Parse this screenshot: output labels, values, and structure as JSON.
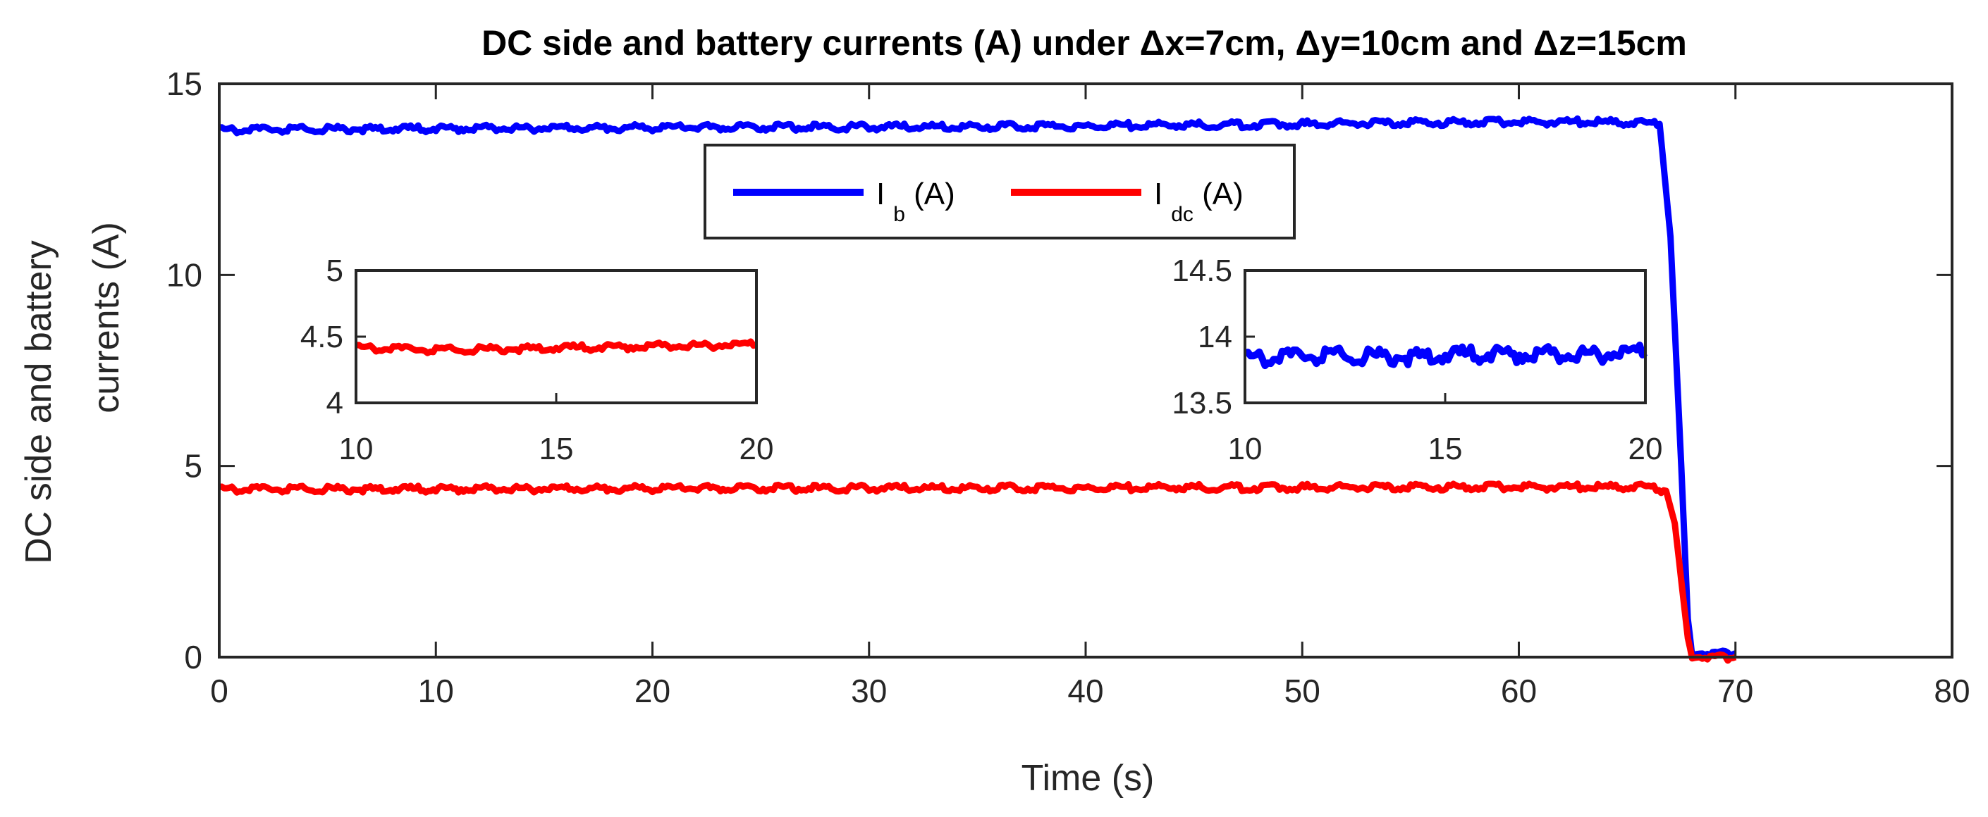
{
  "chart_data": {
    "type": "line",
    "title": "DC side and battery currents (A) under Δx=7cm, Δy=10cm and Δz=15cm",
    "xlabel": "Time (s)",
    "ylabel_lines": [
      "DC side and battery",
      "currents (A)"
    ],
    "xlim": [
      0,
      80
    ],
    "ylim": [
      0,
      15
    ],
    "xticks": [
      "0",
      "10",
      "20",
      "30",
      "40",
      "50",
      "60",
      "70",
      "80"
    ],
    "yticks": [
      "0",
      "5",
      "10",
      "15"
    ],
    "legend_location": "top-center",
    "legend": [
      {
        "main": "I",
        "sub": "b",
        "suffix": " (A)",
        "color": "#0000ff"
      },
      {
        "main": "I",
        "sub": "dc",
        "suffix": " (A)",
        "color": "#ff0000"
      }
    ],
    "series": [
      {
        "key": "ib",
        "color": "#0000ff",
        "x": [
          0,
          5,
          10,
          15,
          20,
          25,
          30,
          35,
          40,
          45,
          50,
          55,
          60,
          64,
          66.5,
          67,
          67.5,
          67.8,
          68,
          70
        ],
        "y": [
          13.8,
          13.82,
          13.83,
          13.84,
          13.85,
          13.86,
          13.87,
          13.88,
          13.9,
          13.92,
          13.95,
          13.98,
          14.0,
          14.0,
          13.95,
          11.0,
          5.0,
          1.0,
          0.1,
          0.1
        ]
      },
      {
        "key": "idc",
        "color": "#ff0000",
        "x": [
          0,
          10,
          20,
          30,
          40,
          50,
          60,
          66,
          66.8,
          67.2,
          67.5,
          67.8,
          68,
          70
        ],
        "y": [
          4.4,
          4.4,
          4.41,
          4.42,
          4.43,
          4.44,
          4.45,
          4.45,
          4.35,
          3.5,
          2.0,
          0.5,
          0,
          0
        ]
      }
    ],
    "insets": [
      {
        "series_key": "idc",
        "xlim": [
          10,
          20
        ],
        "ylim": [
          4,
          5
        ],
        "xticks": [
          "10",
          "15",
          "20"
        ],
        "yticks": [
          "4",
          "4.5",
          "5"
        ],
        "x": [
          10,
          12,
          14,
          16,
          18,
          20
        ],
        "y": [
          4.42,
          4.4,
          4.41,
          4.42,
          4.43,
          4.44
        ]
      },
      {
        "series_key": "ib",
        "xlim": [
          10,
          20
        ],
        "ylim": [
          13.5,
          14.5
        ],
        "xticks": [
          "10",
          "15",
          "20"
        ],
        "yticks": [
          "13.5",
          "14",
          "14.5"
        ],
        "x": [
          10,
          12,
          14,
          16,
          18,
          20
        ],
        "y": [
          13.84,
          13.86,
          13.85,
          13.87,
          13.86,
          13.88
        ]
      }
    ]
  }
}
